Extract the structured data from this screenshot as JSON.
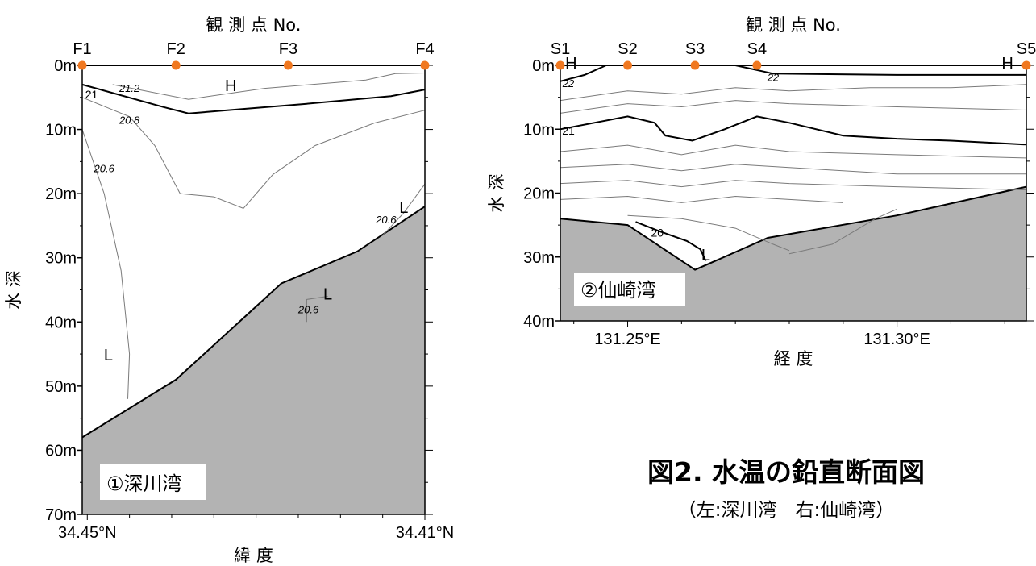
{
  "figure": {
    "title": "図2. 水温の鉛直断面図",
    "subtitle": "（左:深川湾　右:仙崎湾）"
  },
  "chart_data": [
    {
      "type": "contour-section",
      "site_label": "①深川湾",
      "top_axis_label": "観 測 点 No.",
      "xlabel": "緯 度",
      "ylabel": "水 深",
      "stations": [
        "F1",
        "F2",
        "F3",
        "F4"
      ],
      "station_lat": [
        34.4506,
        34.4395,
        34.4262,
        34.41
      ],
      "x_ticks": [
        "34.45°N",
        "34.41°N"
      ],
      "x_tick_values": [
        34.45,
        34.41
      ],
      "y_ticks": [
        "0m",
        "10m",
        "20m",
        "30m",
        "40m",
        "50m",
        "60m",
        "70m"
      ],
      "y_tick_values": [
        0,
        10,
        20,
        30,
        40,
        50,
        60,
        70
      ],
      "xlim": [
        34.4506,
        34.41
      ],
      "ylim": [
        0,
        70
      ],
      "highlow": [
        {
          "text": "H",
          "lat": 34.433,
          "depth": 3
        },
        {
          "text": "L",
          "lat": 34.4475,
          "depth": 45
        },
        {
          "text": "L",
          "lat": 34.4215,
          "depth": 35.5
        },
        {
          "text": "L",
          "lat": 34.4125,
          "depth": 22
        }
      ],
      "contour_labels": [
        {
          "text": "21",
          "lat": 34.4495,
          "depth": 4.5,
          "heavy": true
        },
        {
          "text": "21.2",
          "lat": 34.445,
          "depth": 3.5
        },
        {
          "text": "20.8",
          "lat": 34.445,
          "depth": 8.5
        },
        {
          "text": "20.6",
          "lat": 34.448,
          "depth": 16
        },
        {
          "text": "20.6",
          "lat": 34.4238,
          "depth": 38
        },
        {
          "text": "20.6",
          "lat": 34.4146,
          "depth": 24
        }
      ],
      "isotherms": [
        {
          "value": 21,
          "heavy": true,
          "points": [
            [
              34.4506,
              3
            ],
            [
              34.441,
              6.5
            ],
            [
              34.438,
              7.5
            ],
            [
              34.424,
              6
            ],
            [
              34.414,
              4.8
            ],
            [
              34.41,
              3.8
            ]
          ]
        },
        {
          "value": 21.2,
          "points": [
            [
              34.447,
              3
            ],
            [
              34.438,
              5.3
            ],
            [
              34.429,
              3.6
            ],
            [
              34.417,
              2.3
            ],
            [
              34.4135,
              1.3
            ],
            [
              34.41,
              1.2
            ]
          ]
        },
        {
          "value": 20.8,
          "points": [
            [
              34.4506,
              5
            ],
            [
              34.445,
              8
            ],
            [
              34.442,
              12.5
            ],
            [
              34.439,
              20
            ],
            [
              34.435,
              20.5
            ],
            [
              34.4315,
              22.3
            ],
            [
              34.428,
              17
            ],
            [
              34.423,
              12.5
            ],
            [
              34.416,
              9
            ],
            [
              34.41,
              7
            ]
          ]
        },
        {
          "value": 20.6,
          "points": [
            [
              34.4506,
              10
            ],
            [
              34.448,
              20
            ],
            [
              34.446,
              32
            ],
            [
              34.445,
              45
            ],
            [
              34.4452,
              52
            ]
          ]
        },
        {
          "value": 20.6,
          "points": [
            [
              34.424,
              40
            ],
            [
              34.424,
              36.5
            ],
            [
              34.4215,
              36
            ]
          ]
        },
        {
          "value": 20.6,
          "points": [
            [
              34.415,
              26.5
            ],
            [
              34.4125,
              23
            ],
            [
              34.41,
              18.5
            ]
          ]
        }
      ],
      "bottom": [
        [
          34.4506,
          58
        ],
        [
          34.4395,
          49
        ],
        [
          34.427,
          34
        ],
        [
          34.418,
          29
        ],
        [
          34.41,
          22
        ]
      ],
      "colors": {
        "seabed": "#b3b3b3",
        "station_marker": "#f07820"
      }
    },
    {
      "type": "contour-section",
      "site_label": "②仙崎湾",
      "top_axis_label": "観 測 点 No.",
      "xlabel": "経 度",
      "ylabel": "水 深",
      "stations": [
        "S1",
        "S2",
        "S3",
        "S4",
        "S5"
      ],
      "station_lon": [
        131.2375,
        131.25,
        131.2625,
        131.274,
        131.324
      ],
      "x_ticks": [
        "131.25°E",
        "131.30°E"
      ],
      "x_tick_values": [
        131.25,
        131.3
      ],
      "y_ticks": [
        "0m",
        "10m",
        "20m",
        "30m",
        "40m"
      ],
      "y_tick_values": [
        0,
        10,
        20,
        30,
        40
      ],
      "xlim": [
        131.2375,
        131.324
      ],
      "ylim": [
        0,
        40
      ],
      "highlow": [
        {
          "text": "H",
          "lon": 131.2395,
          "depth": -0.5
        },
        {
          "text": "H",
          "lon": 131.3205,
          "depth": -0.5
        },
        {
          "text": "L",
          "lon": 131.2645,
          "depth": 29.5
        }
      ],
      "contour_labels": [
        {
          "text": "22",
          "lon": 131.239,
          "depth": 2.8
        },
        {
          "text": "22",
          "lon": 131.277,
          "depth": 1.8
        },
        {
          "text": "21",
          "lon": 131.239,
          "depth": 10.2,
          "heavy": true
        },
        {
          "text": "20",
          "lon": 131.2555,
          "depth": 26.2,
          "heavy": true
        }
      ],
      "isotherms": [
        {
          "value": 21,
          "heavy": true,
          "points": [
            [
              131.2375,
              10
            ],
            [
              131.25,
              8
            ],
            [
              131.255,
              9
            ],
            [
              131.257,
              11
            ],
            [
              131.262,
              11.8
            ],
            [
              131.268,
              10
            ],
            [
              131.274,
              8
            ],
            [
              131.28,
              9
            ],
            [
              131.29,
              11
            ],
            [
              131.3,
              11.5
            ],
            [
              131.31,
              11.8
            ],
            [
              131.324,
              12.4
            ]
          ]
        },
        {
          "value": 22,
          "heavy": true,
          "points": [
            [
              131.2375,
              2.5
            ],
            [
              131.242,
              1.5
            ],
            [
              131.246,
              0
            ]
          ]
        },
        {
          "value": 22,
          "heavy": true,
          "points": [
            [
              131.27,
              0
            ],
            [
              131.277,
              1.3
            ],
            [
              131.3,
              1.5
            ],
            [
              131.324,
              1.5
            ]
          ]
        },
        {
          "value": 20,
          "heavy": true,
          "points": [
            [
              131.2515,
              24.5
            ],
            [
              131.256,
              26
            ],
            [
              131.261,
              27.5
            ],
            [
              131.2635,
              28.8
            ],
            [
              131.2645,
              30.6
            ]
          ]
        },
        {
          "points": [
            [
              131.2375,
              5.5
            ],
            [
              131.25,
              4
            ],
            [
              131.26,
              4.5
            ],
            [
              131.27,
              3.5
            ],
            [
              131.28,
              4
            ],
            [
              131.295,
              3.5
            ],
            [
              131.31,
              3.5
            ],
            [
              131.324,
              3
            ]
          ]
        },
        {
          "points": [
            [
              131.2375,
              7.5
            ],
            [
              131.25,
              6
            ],
            [
              131.26,
              6.5
            ],
            [
              131.27,
              5.5
            ],
            [
              131.28,
              6
            ],
            [
              131.3,
              6.5
            ],
            [
              131.324,
              7
            ]
          ]
        },
        {
          "points": [
            [
              131.2375,
              13.5
            ],
            [
              131.25,
              12.5
            ],
            [
              131.26,
              14
            ],
            [
              131.27,
              12.5
            ],
            [
              131.28,
              13.5
            ],
            [
              131.3,
              14
            ],
            [
              131.324,
              14.5
            ]
          ]
        },
        {
          "points": [
            [
              131.2375,
              16
            ],
            [
              131.25,
              15.5
            ],
            [
              131.26,
              16.5
            ],
            [
              131.27,
              15.5
            ],
            [
              131.28,
              16
            ],
            [
              131.3,
              17
            ],
            [
              131.324,
              17
            ]
          ]
        },
        {
          "points": [
            [
              131.2375,
              18.5
            ],
            [
              131.25,
              18
            ],
            [
              131.26,
              19
            ],
            [
              131.27,
              18
            ],
            [
              131.28,
              18.5
            ],
            [
              131.3,
              19
            ],
            [
              131.324,
              19.5
            ]
          ]
        },
        {
          "points": [
            [
              131.2375,
              21
            ],
            [
              131.25,
              20.5
            ],
            [
              131.26,
              21.5
            ],
            [
              131.27,
              20.5
            ],
            [
              131.28,
              21
            ],
            [
              131.29,
              21.5
            ]
          ]
        },
        {
          "points": [
            [
              131.25,
              23.5
            ],
            [
              131.26,
              24
            ],
            [
              131.27,
              25.5
            ],
            [
              131.277,
              28
            ],
            [
              131.28,
              29
            ]
          ]
        },
        {
          "points": [
            [
              131.3,
              22.5
            ],
            [
              131.296,
              24
            ],
            [
              131.288,
              28
            ],
            [
              131.28,
              29.5
            ]
          ]
        }
      ],
      "bottom": [
        [
          131.2375,
          24
        ],
        [
          131.25,
          25
        ],
        [
          131.2625,
          32
        ],
        [
          131.276,
          27
        ],
        [
          131.3,
          23.5
        ],
        [
          131.324,
          19
        ]
      ],
      "colors": {
        "seabed": "#b3b3b3",
        "station_marker": "#f07820"
      }
    }
  ]
}
